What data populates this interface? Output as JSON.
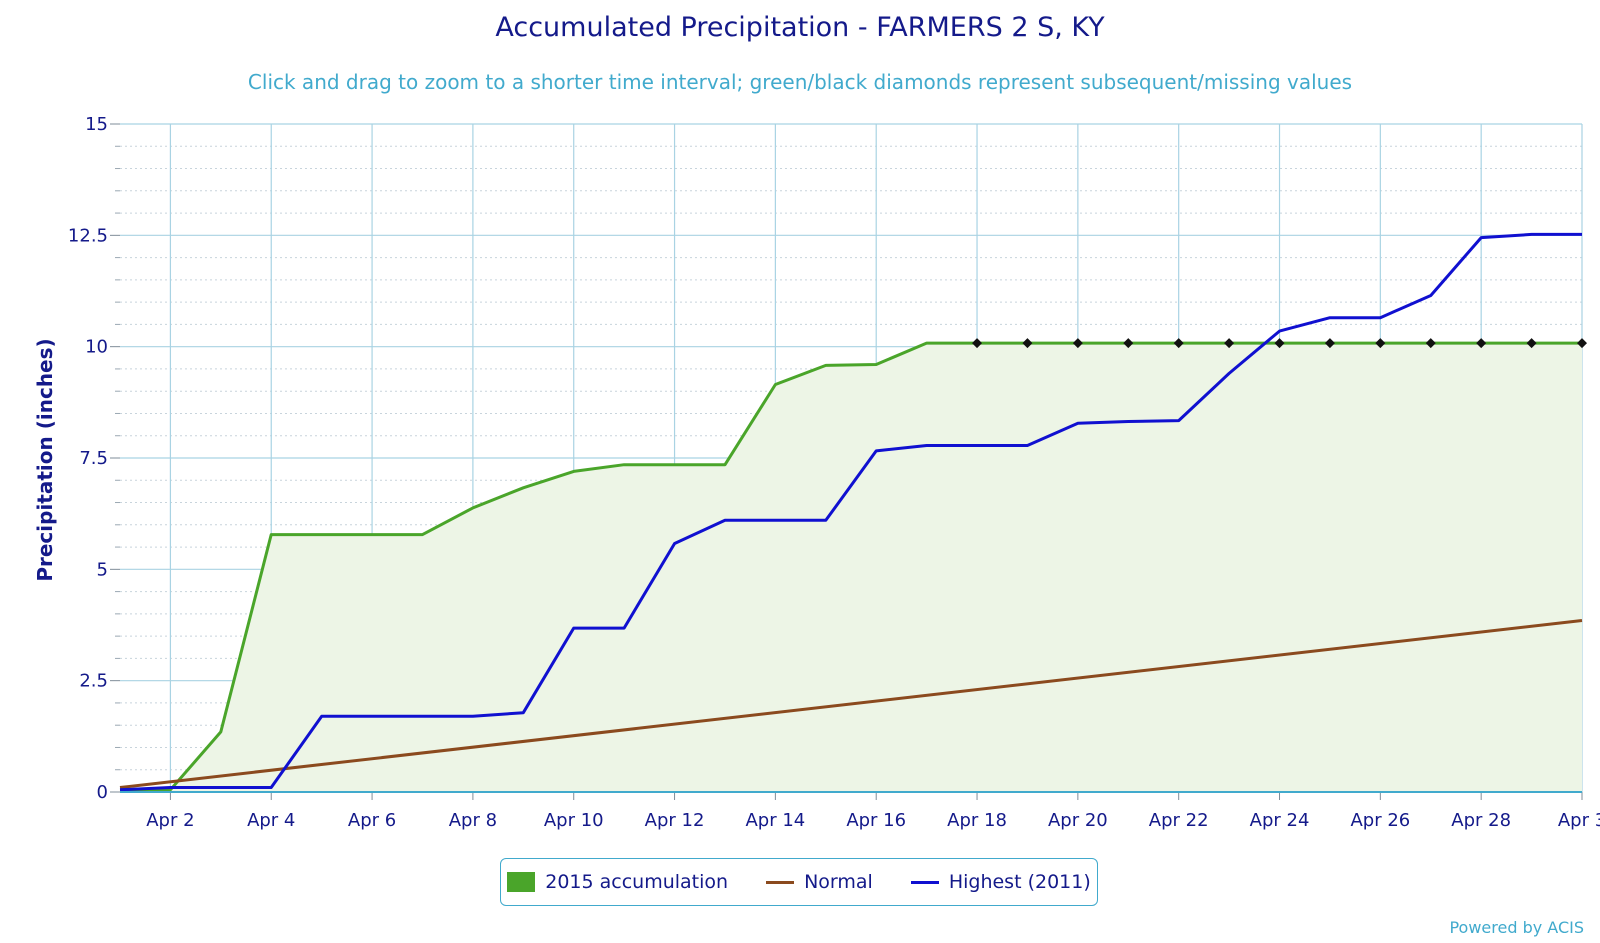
{
  "chart_data": {
    "type": "line",
    "title": "Accumulated Precipitation - FARMERS 2 S, KY",
    "subtitle": "Click and drag to zoom to a shorter time interval; green/black diamonds represent subsequent/missing values",
    "ylabel": "Precipitation (inches)",
    "xlabel": "",
    "ylim": [
      0,
      15
    ],
    "xlim": [
      1,
      30
    ],
    "y_ticks": [
      "0",
      "2.5",
      "5",
      "7.5",
      "10",
      "12.5",
      "15"
    ],
    "y_tick_values": [
      0,
      2.5,
      5,
      7.5,
      10,
      12.5,
      15
    ],
    "x_ticks": [
      "Apr 2",
      "Apr 4",
      "Apr 6",
      "Apr 8",
      "Apr 10",
      "Apr 12",
      "Apr 14",
      "Apr 16",
      "Apr 18",
      "Apr 20",
      "Apr 22",
      "Apr 24",
      "Apr 26",
      "Apr 28",
      "Apr 3"
    ],
    "x_tick_values": [
      2,
      4,
      6,
      8,
      10,
      12,
      14,
      16,
      18,
      20,
      22,
      24,
      26,
      28,
      30
    ],
    "grid": true,
    "legend": "bottom-center",
    "series": [
      {
        "name": "2015 accumulation",
        "kind": "area",
        "color": "#4aa52a",
        "fill": "#edf5e6",
        "x": [
          1,
          2,
          3,
          4,
          5,
          6,
          7,
          8,
          9,
          10,
          11,
          12,
          13,
          14,
          15,
          16,
          17,
          18,
          19,
          20,
          21,
          22,
          23,
          24,
          25,
          26,
          27,
          28,
          29,
          30
        ],
        "y": [
          0.02,
          0.05,
          1.35,
          5.78,
          5.78,
          5.78,
          5.78,
          6.38,
          6.83,
          7.2,
          7.35,
          7.35,
          7.35,
          9.15,
          9.58,
          9.6,
          10.08,
          10.08,
          10.08,
          10.08,
          10.08,
          10.08,
          10.08,
          10.08,
          10.08,
          10.08,
          10.08,
          10.08,
          10.08,
          10.08
        ],
        "subsequent_from_x": 18,
        "marker_color": "#111111"
      },
      {
        "name": "Normal",
        "kind": "line",
        "color": "#8b4a1e",
        "x": [
          1,
          30
        ],
        "y": [
          0.1,
          3.85
        ]
      },
      {
        "name": "Highest (2011)",
        "kind": "line",
        "color": "#1010d0",
        "x": [
          1,
          2,
          3,
          4,
          5,
          6,
          7,
          8,
          9,
          10,
          11,
          12,
          13,
          14,
          15,
          16,
          17,
          18,
          19,
          20,
          21,
          22,
          23,
          24,
          25,
          26,
          27,
          28,
          29,
          30
        ],
        "y": [
          0.05,
          0.1,
          0.1,
          0.1,
          1.7,
          1.7,
          1.7,
          1.7,
          1.78,
          3.68,
          3.68,
          5.58,
          6.1,
          6.1,
          6.1,
          7.66,
          7.78,
          7.78,
          7.78,
          8.28,
          8.32,
          8.34,
          9.4,
          10.35,
          10.65,
          10.65,
          11.15,
          12.45,
          12.52,
          12.52
        ]
      }
    ]
  },
  "legend": {
    "items": [
      {
        "label": "2015 accumulation",
        "color": "#4aa52a",
        "style": "box"
      },
      {
        "label": "Normal",
        "color": "#8b4a1e",
        "style": "line"
      },
      {
        "label": "Highest (2011)",
        "color": "#1010d0",
        "style": "line"
      }
    ]
  },
  "credit": "Powered by ACIS"
}
